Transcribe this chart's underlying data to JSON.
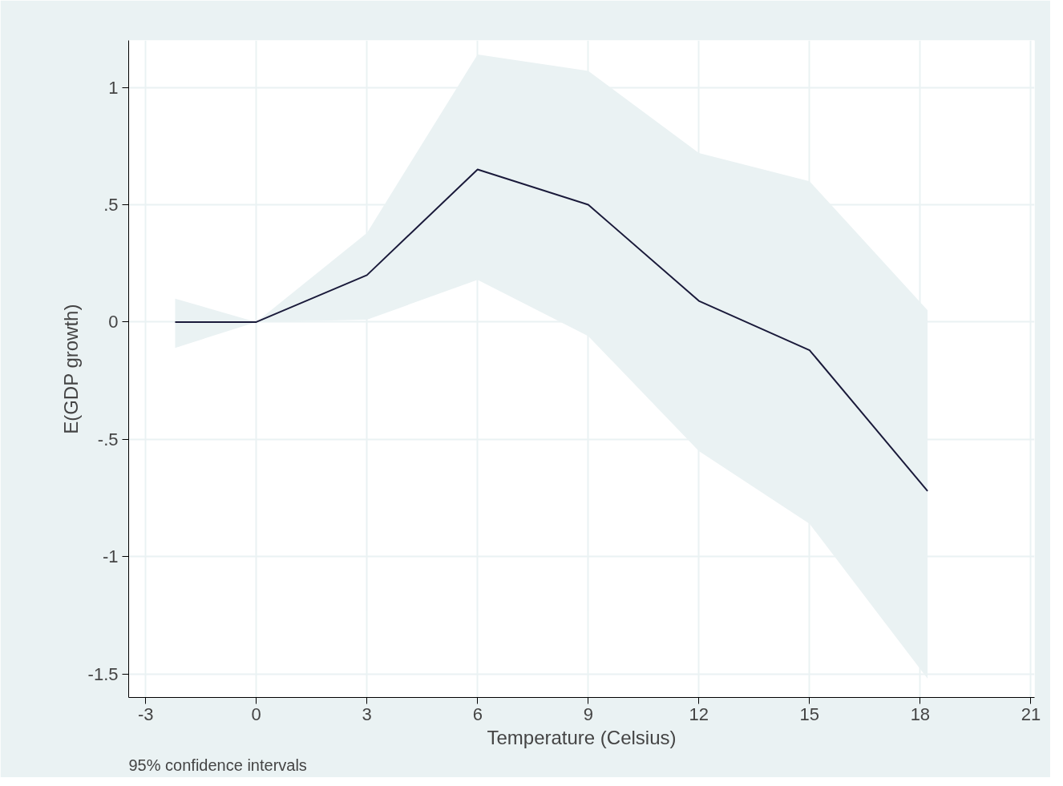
{
  "chart_data": {
    "type": "line",
    "xlabel": "Temperature (Celsius)",
    "ylabel": "E(GDP growth)",
    "annotations": [
      "95% confidence intervals"
    ],
    "series": [
      {
        "color": "#1a1a3a",
        "x": [
          -2.2,
          0,
          3,
          6,
          9,
          12,
          15,
          18.2
        ],
        "values": [
          0,
          0,
          0.2,
          0.65,
          0.5,
          0.09,
          -0.12,
          -0.72
        ],
        "lower": [
          -0.11,
          0,
          0.01,
          0.18,
          -0.06,
          -0.55,
          -0.86,
          -1.52
        ],
        "upper": [
          0.1,
          0,
          0.38,
          1.14,
          1.07,
          0.72,
          0.6,
          0.05
        ]
      }
    ],
    "xlim": [
      -3.46,
      21.1
    ],
    "ylim": [
      -1.6,
      1.2
    ],
    "xticks": [
      -3,
      0,
      3,
      6,
      9,
      12,
      15,
      18,
      21
    ],
    "yticks": [
      {
        "value": -1.5,
        "label": "-1.5"
      },
      {
        "value": -1,
        "label": "-1"
      },
      {
        "value": -0.5,
        "label": "-.5"
      },
      {
        "value": 0,
        "label": "0"
      },
      {
        "value": 0.5,
        "label": ".5"
      },
      {
        "value": 1,
        "label": "1"
      }
    ],
    "grid": true,
    "marker": "none",
    "line_style": "solid"
  }
}
